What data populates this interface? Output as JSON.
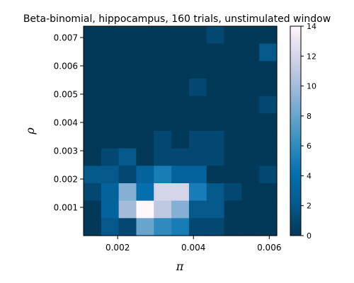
{
  "chart_data": {
    "type": "heatmap",
    "title": "Beta-binomial, hippocampus, 160 trials, unstimulated window",
    "xlabel": "π",
    "ylabel": "ρ",
    "x_range": [
      0.0011,
      0.0062
    ],
    "y_range": [
      0.0,
      0.0074
    ],
    "x_ticks": [
      0.002,
      0.004,
      0.006
    ],
    "x_tick_labels": [
      "0.002",
      "0.004",
      "0.006"
    ],
    "y_ticks": [
      0.001,
      0.002,
      0.003,
      0.004,
      0.005,
      0.006,
      0.007
    ],
    "y_tick_labels": [
      "0.001",
      "0.002",
      "0.003",
      "0.004",
      "0.005",
      "0.006",
      "0.007"
    ],
    "colorbar": {
      "min": 0,
      "max": 14,
      "ticks": [
        0,
        2,
        4,
        6,
        8,
        10,
        12,
        14
      ],
      "tick_labels": [
        "0",
        "2",
        "4",
        "6",
        "8",
        "10",
        "12",
        "14"
      ],
      "colormap": "PuBu_r"
    },
    "x_bin_count": 11,
    "y_bin_count": 12,
    "counts_top_to_bottom": [
      [
        0,
        0,
        0,
        0,
        0,
        0,
        0,
        1,
        0,
        0,
        0
      ],
      [
        0,
        0,
        0,
        0,
        0,
        0,
        0,
        0,
        0,
        0,
        2
      ],
      [
        0,
        0,
        0,
        0,
        0,
        0,
        0,
        0,
        0,
        0,
        0
      ],
      [
        0,
        0,
        0,
        0,
        0,
        0,
        1,
        0,
        0,
        0,
        0
      ],
      [
        0,
        0,
        0,
        0,
        0,
        0,
        0,
        0,
        0,
        0,
        1
      ],
      [
        0,
        0,
        0,
        0,
        0,
        0,
        0,
        0,
        0,
        0,
        0
      ],
      [
        0,
        0,
        0,
        0,
        1,
        0,
        1,
        1,
        0,
        0,
        0
      ],
      [
        0,
        1,
        2,
        0,
        1,
        1,
        1,
        1,
        0,
        0,
        0
      ],
      [
        2,
        2,
        1,
        3,
        5,
        3,
        3,
        0,
        0,
        0,
        1
      ],
      [
        1,
        3,
        9,
        4,
        12,
        12,
        5,
        2,
        1,
        0,
        0
      ],
      [
        0,
        3,
        10,
        14,
        11,
        9,
        2,
        2,
        0,
        0,
        0
      ],
      [
        0,
        2,
        1,
        8,
        6,
        5,
        1,
        1,
        0,
        0,
        0
      ]
    ]
  }
}
